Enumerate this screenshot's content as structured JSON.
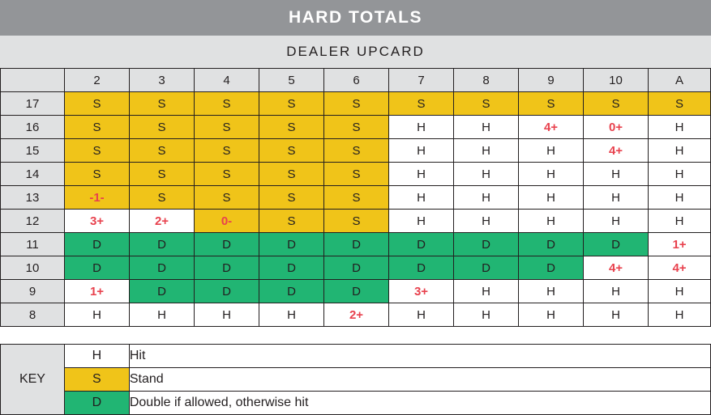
{
  "title": "HARD TOTALS",
  "subtitle": "DEALER UPCARD",
  "colors": {
    "stand": "#f0c419",
    "double": "#21b573",
    "hit": "#ffffff",
    "header": "#939598",
    "subheader": "#e0e1e2",
    "deviation_text": "#e8424e"
  },
  "columns": [
    "2",
    "3",
    "4",
    "5",
    "6",
    "7",
    "8",
    "9",
    "10",
    "A"
  ],
  "rows": [
    {
      "total": "17",
      "cells": [
        {
          "text": "S",
          "type": "S"
        },
        {
          "text": "S",
          "type": "S"
        },
        {
          "text": "S",
          "type": "S"
        },
        {
          "text": "S",
          "type": "S"
        },
        {
          "text": "S",
          "type": "S"
        },
        {
          "text": "S",
          "type": "S"
        },
        {
          "text": "S",
          "type": "S"
        },
        {
          "text": "S",
          "type": "S"
        },
        {
          "text": "S",
          "type": "S"
        },
        {
          "text": "S",
          "type": "S"
        }
      ]
    },
    {
      "total": "16",
      "cells": [
        {
          "text": "S",
          "type": "S"
        },
        {
          "text": "S",
          "type": "S"
        },
        {
          "text": "S",
          "type": "S"
        },
        {
          "text": "S",
          "type": "S"
        },
        {
          "text": "S",
          "type": "S"
        },
        {
          "text": "H",
          "type": "H"
        },
        {
          "text": "H",
          "type": "H"
        },
        {
          "text": "4+",
          "type": "H",
          "dev": true
        },
        {
          "text": "0+",
          "type": "H",
          "dev": true
        },
        {
          "text": "H",
          "type": "H"
        }
      ]
    },
    {
      "total": "15",
      "cells": [
        {
          "text": "S",
          "type": "S"
        },
        {
          "text": "S",
          "type": "S"
        },
        {
          "text": "S",
          "type": "S"
        },
        {
          "text": "S",
          "type": "S"
        },
        {
          "text": "S",
          "type": "S"
        },
        {
          "text": "H",
          "type": "H"
        },
        {
          "text": "H",
          "type": "H"
        },
        {
          "text": "H",
          "type": "H"
        },
        {
          "text": "4+",
          "type": "H",
          "dev": true
        },
        {
          "text": "H",
          "type": "H"
        }
      ]
    },
    {
      "total": "14",
      "cells": [
        {
          "text": "S",
          "type": "S"
        },
        {
          "text": "S",
          "type": "S"
        },
        {
          "text": "S",
          "type": "S"
        },
        {
          "text": "S",
          "type": "S"
        },
        {
          "text": "S",
          "type": "S"
        },
        {
          "text": "H",
          "type": "H"
        },
        {
          "text": "H",
          "type": "H"
        },
        {
          "text": "H",
          "type": "H"
        },
        {
          "text": "H",
          "type": "H"
        },
        {
          "text": "H",
          "type": "H"
        }
      ]
    },
    {
      "total": "13",
      "cells": [
        {
          "text": "-1-",
          "type": "S",
          "dev": true
        },
        {
          "text": "S",
          "type": "S"
        },
        {
          "text": "S",
          "type": "S"
        },
        {
          "text": "S",
          "type": "S"
        },
        {
          "text": "S",
          "type": "S"
        },
        {
          "text": "H",
          "type": "H"
        },
        {
          "text": "H",
          "type": "H"
        },
        {
          "text": "H",
          "type": "H"
        },
        {
          "text": "H",
          "type": "H"
        },
        {
          "text": "H",
          "type": "H"
        }
      ]
    },
    {
      "total": "12",
      "cells": [
        {
          "text": "3+",
          "type": "H",
          "dev": true
        },
        {
          "text": "2+",
          "type": "H",
          "dev": true
        },
        {
          "text": "0-",
          "type": "S",
          "dev": true
        },
        {
          "text": "S",
          "type": "S"
        },
        {
          "text": "S",
          "type": "S"
        },
        {
          "text": "H",
          "type": "H"
        },
        {
          "text": "H",
          "type": "H"
        },
        {
          "text": "H",
          "type": "H"
        },
        {
          "text": "H",
          "type": "H"
        },
        {
          "text": "H",
          "type": "H"
        }
      ]
    },
    {
      "total": "11",
      "cells": [
        {
          "text": "D",
          "type": "D"
        },
        {
          "text": "D",
          "type": "D"
        },
        {
          "text": "D",
          "type": "D"
        },
        {
          "text": "D",
          "type": "D"
        },
        {
          "text": "D",
          "type": "D"
        },
        {
          "text": "D",
          "type": "D"
        },
        {
          "text": "D",
          "type": "D"
        },
        {
          "text": "D",
          "type": "D"
        },
        {
          "text": "D",
          "type": "D"
        },
        {
          "text": "1+",
          "type": "H",
          "dev": true
        }
      ]
    },
    {
      "total": "10",
      "cells": [
        {
          "text": "D",
          "type": "D"
        },
        {
          "text": "D",
          "type": "D"
        },
        {
          "text": "D",
          "type": "D"
        },
        {
          "text": "D",
          "type": "D"
        },
        {
          "text": "D",
          "type": "D"
        },
        {
          "text": "D",
          "type": "D"
        },
        {
          "text": "D",
          "type": "D"
        },
        {
          "text": "D",
          "type": "D"
        },
        {
          "text": "4+",
          "type": "H",
          "dev": true
        },
        {
          "text": "4+",
          "type": "H",
          "dev": true
        }
      ]
    },
    {
      "total": "9",
      "cells": [
        {
          "text": "1+",
          "type": "H",
          "dev": true
        },
        {
          "text": "D",
          "type": "D"
        },
        {
          "text": "D",
          "type": "D"
        },
        {
          "text": "D",
          "type": "D"
        },
        {
          "text": "D",
          "type": "D"
        },
        {
          "text": "3+",
          "type": "H",
          "dev": true
        },
        {
          "text": "H",
          "type": "H"
        },
        {
          "text": "H",
          "type": "H"
        },
        {
          "text": "H",
          "type": "H"
        },
        {
          "text": "H",
          "type": "H"
        }
      ]
    },
    {
      "total": "8",
      "cells": [
        {
          "text": "H",
          "type": "H"
        },
        {
          "text": "H",
          "type": "H"
        },
        {
          "text": "H",
          "type": "H"
        },
        {
          "text": "H",
          "type": "H"
        },
        {
          "text": "2+",
          "type": "H",
          "dev": true
        },
        {
          "text": "H",
          "type": "H"
        },
        {
          "text": "H",
          "type": "H"
        },
        {
          "text": "H",
          "type": "H"
        },
        {
          "text": "H",
          "type": "H"
        },
        {
          "text": "H",
          "type": "H"
        }
      ]
    }
  ],
  "key": {
    "label": "KEY",
    "items": [
      {
        "code": "H",
        "type": "H",
        "desc": "Hit"
      },
      {
        "code": "S",
        "type": "S",
        "desc": "Stand"
      },
      {
        "code": "D",
        "type": "D",
        "desc": "Double if allowed, otherwise hit"
      }
    ]
  }
}
